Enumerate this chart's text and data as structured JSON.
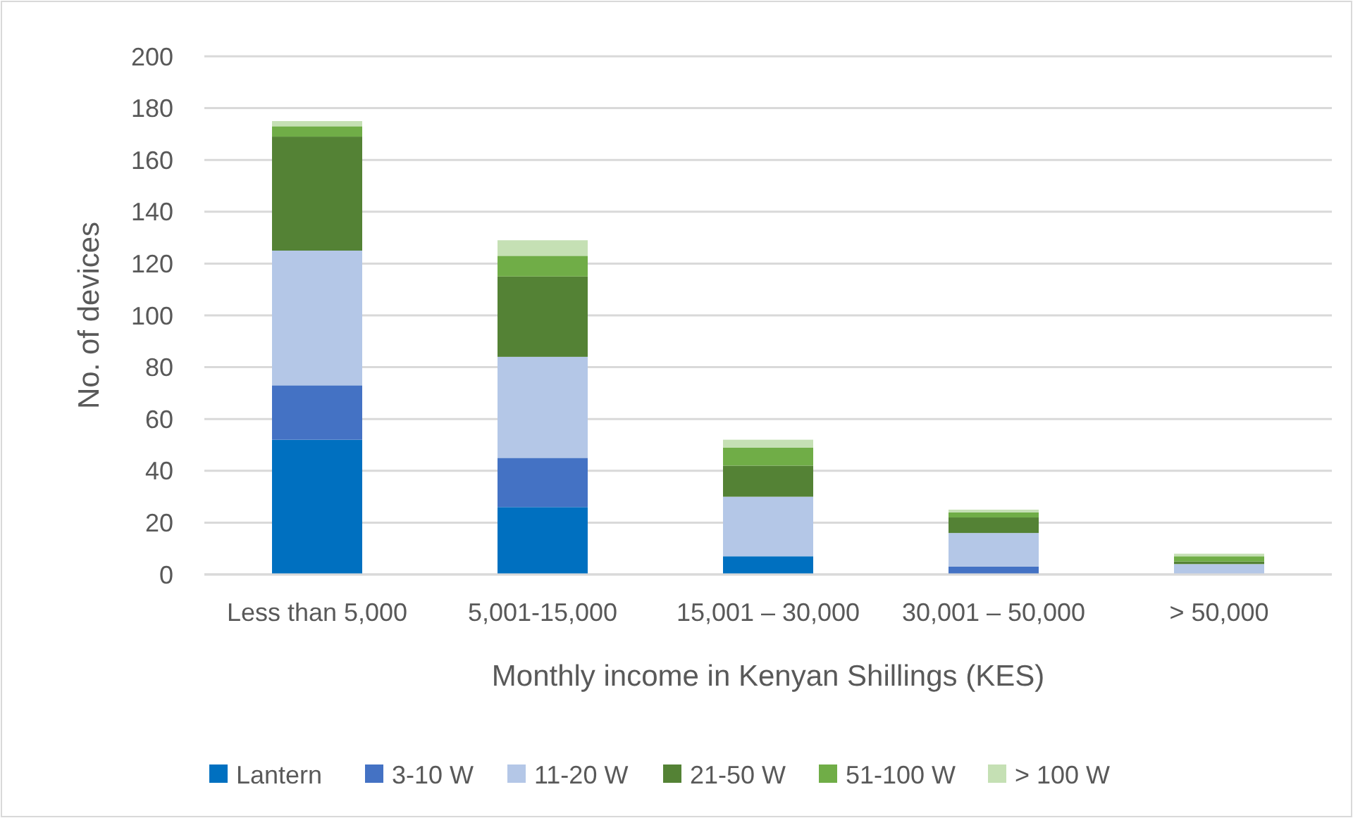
{
  "chart_data": {
    "type": "bar",
    "stacked": true,
    "xlabel": "Monthly income in Kenyan Shillings (KES)",
    "ylabel": "No. of devices",
    "categories": [
      "Less than 5,000",
      "5,001-15,000",
      "15,001 – 30,000",
      "30,001 – 50,000",
      "> 50,000"
    ],
    "series": [
      {
        "name": "Lantern",
        "color": "#0070c0",
        "values": [
          52,
          26,
          7,
          0,
          0
        ]
      },
      {
        "name": "3-10 W",
        "color": "#4472c4",
        "values": [
          21,
          19,
          0,
          3,
          0
        ]
      },
      {
        "name": "11-20 W",
        "color": "#b4c7e7",
        "values": [
          52,
          39,
          23,
          13,
          4
        ]
      },
      {
        "name": "21-50 W",
        "color": "#548235",
        "values": [
          44,
          31,
          12,
          6,
          1
        ]
      },
      {
        "name": "51-100 W",
        "color": "#70ad47",
        "values": [
          4,
          8,
          7,
          2,
          2
        ]
      },
      {
        "name": "> 100 W",
        "color": "#c5e0b4",
        "values": [
          2,
          6,
          3,
          1,
          1
        ]
      }
    ],
    "ylim": [
      0,
      200
    ],
    "yticks": [
      0,
      20,
      40,
      60,
      80,
      100,
      120,
      140,
      160,
      180,
      200
    ],
    "grid": "y",
    "legend": "bottom"
  }
}
